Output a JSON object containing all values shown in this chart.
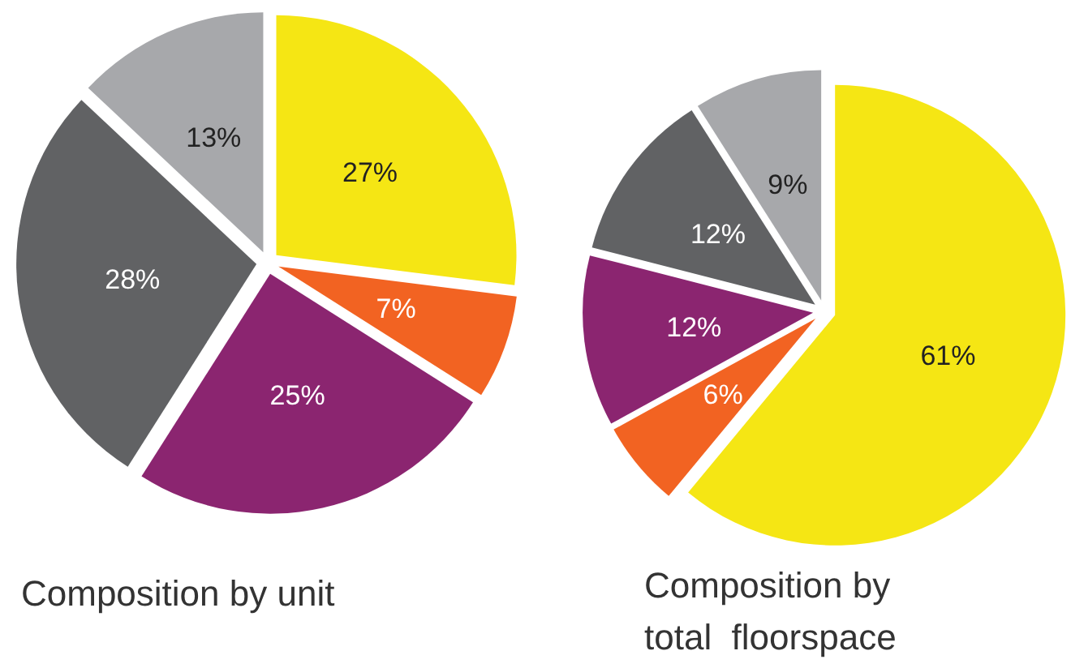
{
  "chart_data": [
    {
      "type": "pie",
      "title": "Composition by unit",
      "categories": [
        null,
        null,
        null,
        null,
        null
      ],
      "values": [
        27,
        7,
        25,
        28,
        13
      ],
      "value_labels": [
        "27%",
        "7%",
        "25%",
        "28%",
        "13%"
      ],
      "colors": [
        "#f5e614",
        "#f26322",
        "#8b2570",
        "#616264",
        "#a7a8ab"
      ]
    },
    {
      "type": "pie",
      "title": "Composition by\ntotal  floorspace",
      "categories": [
        null,
        null,
        null,
        null,
        null
      ],
      "values": [
        61,
        6,
        12,
        12,
        9
      ],
      "value_labels": [
        "61%",
        "6%",
        "12%",
        "12%",
        "9%"
      ],
      "colors": [
        "#f5e614",
        "#f26322",
        "#8b2570",
        "#616264",
        "#a7a8ab"
      ]
    }
  ]
}
